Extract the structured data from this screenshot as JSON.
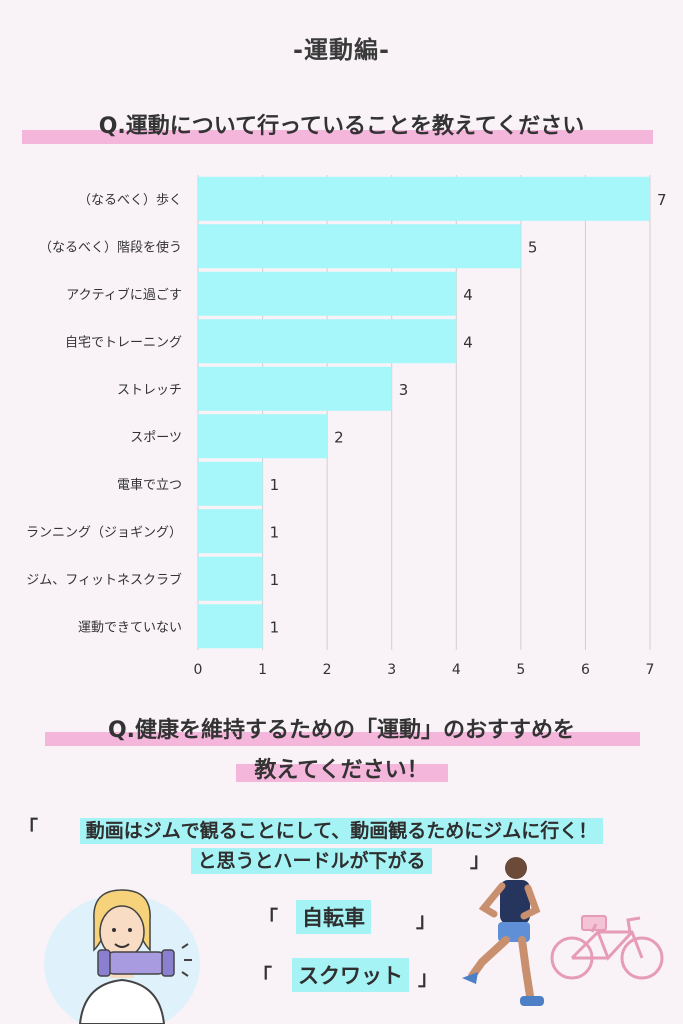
{
  "header": {
    "section_title": "-運動編-"
  },
  "question1": {
    "text": "Q.運動について行っていることを教えてください"
  },
  "chart_data": {
    "type": "bar",
    "orientation": "horizontal",
    "categories": [
      "（なるべく）歩く",
      "（なるべく）階段を使う",
      "アクティブに過ごす",
      "自宅でトレーニング",
      "ストレッチ",
      "スポーツ",
      "電車で立つ",
      "ランニング（ジョギング）",
      "ジム、フィットネスクラブ",
      "運動できていない"
    ],
    "values": [
      7,
      5,
      4,
      4,
      3,
      2,
      1,
      1,
      1,
      1
    ],
    "xlim": [
      0,
      7
    ],
    "xticks": [
      "0",
      "1",
      "2",
      "3",
      "4",
      "5",
      "6",
      "7"
    ],
    "grid": true,
    "bar_color": "#a6f7fa"
  },
  "question2": {
    "line1": "Q.健康を維持するための「運動」のおすすめを",
    "line2": "教えてください！"
  },
  "answers": {
    "a1_open": "「",
    "a1_line1": "動画はジムで観ることにして、動画観るためにジムに行く！",
    "a1_line2": "と思うとハードルが下がる",
    "a1_close": "」",
    "a2_open": "「",
    "a2": "自転車",
    "a2_close": "」",
    "a3_open": "「",
    "a3": "スクワット",
    "a3_close": "」"
  },
  "colors": {
    "highlight_pink": "#f5b6dc",
    "highlight_cyan": "#a6f3f6",
    "background": "#f9f3f7"
  }
}
